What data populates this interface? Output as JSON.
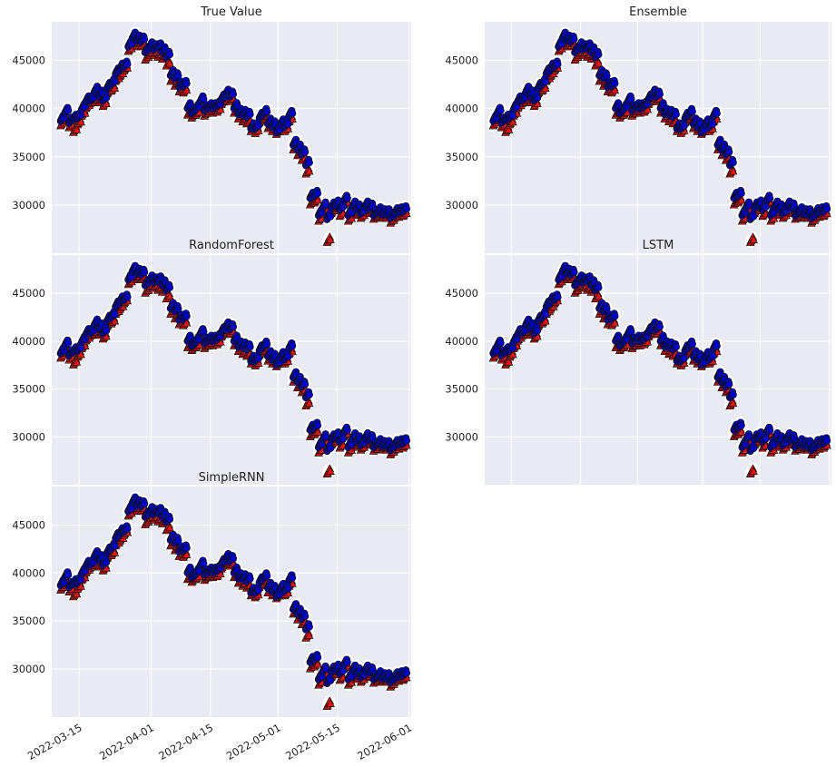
{
  "figure": {
    "panel_background": "#eaeaf2",
    "grid_color": "#ffffff",
    "blue_marker_color": "#0000cc",
    "red_marker_color": "#ee1111",
    "marker_outline_color": "#101010"
  },
  "chart_data": [
    {
      "type": "scatter",
      "title": "True Value",
      "y_ticks": [
        "30000",
        "35000",
        "40000",
        "45000"
      ],
      "x_ticks": [],
      "grid": true,
      "series": [
        {
          "marker": "circle",
          "color": "blue"
        },
        {
          "marker": "triangle",
          "color": "red"
        }
      ]
    },
    {
      "type": "scatter",
      "title": "Ensemble",
      "y_ticks": [
        "30000",
        "35000",
        "40000",
        "45000"
      ],
      "x_ticks": [],
      "grid": true,
      "series": [
        {
          "marker": "circle",
          "color": "blue"
        },
        {
          "marker": "triangle",
          "color": "red"
        }
      ]
    },
    {
      "type": "scatter",
      "title": "RandomForest",
      "y_ticks": [
        "30000",
        "35000",
        "40000",
        "45000"
      ],
      "x_ticks": [],
      "grid": true,
      "series": [
        {
          "marker": "circle",
          "color": "blue"
        },
        {
          "marker": "triangle",
          "color": "red"
        }
      ]
    },
    {
      "type": "scatter",
      "title": "LSTM",
      "y_ticks": [
        "30000",
        "35000",
        "40000",
        "45000"
      ],
      "x_ticks": [],
      "grid": true,
      "series": [
        {
          "marker": "circle",
          "color": "blue"
        },
        {
          "marker": "triangle",
          "color": "red"
        }
      ]
    },
    {
      "type": "scatter",
      "title": "SimpleRNN",
      "y_ticks": [
        "30000",
        "35000",
        "40000",
        "45000"
      ],
      "x_ticks": [
        "2022-03-15",
        "2022-04-01",
        "2022-04-15",
        "2022-05-01",
        "2022-05-15",
        "2022-06-01"
      ],
      "grid": true,
      "series": [
        {
          "marker": "circle",
          "color": "blue"
        },
        {
          "marker": "triangle",
          "color": "red"
        }
      ]
    }
  ],
  "price_series": {
    "x_range": [
      "2022-03-11",
      "2022-05-31"
    ],
    "ylim": [
      25000,
      49000
    ],
    "dates": [
      "2022-03-11",
      "2022-03-12",
      "2022-03-13",
      "2022-03-14",
      "2022-03-15",
      "2022-03-16",
      "2022-03-17",
      "2022-03-18",
      "2022-03-19",
      "2022-03-20",
      "2022-03-21",
      "2022-03-22",
      "2022-03-23",
      "2022-03-24",
      "2022-03-25",
      "2022-03-26",
      "2022-03-27",
      "2022-03-28",
      "2022-03-29",
      "2022-03-30",
      "2022-03-31",
      "2022-04-01",
      "2022-04-02",
      "2022-04-03",
      "2022-04-04",
      "2022-04-05",
      "2022-04-06",
      "2022-04-07",
      "2022-04-08",
      "2022-04-09",
      "2022-04-10",
      "2022-04-11",
      "2022-04-12",
      "2022-04-13",
      "2022-04-14",
      "2022-04-15",
      "2022-04-16",
      "2022-04-17",
      "2022-04-18",
      "2022-04-19",
      "2022-04-20",
      "2022-04-21",
      "2022-04-22",
      "2022-04-23",
      "2022-04-24",
      "2022-04-25",
      "2022-04-26",
      "2022-04-27",
      "2022-04-28",
      "2022-04-29",
      "2022-04-30",
      "2022-05-01",
      "2022-05-02",
      "2022-05-03",
      "2022-05-04",
      "2022-05-05",
      "2022-05-06",
      "2022-05-07",
      "2022-05-08",
      "2022-05-09",
      "2022-05-10",
      "2022-05-11",
      "2022-05-12",
      "2022-05-13",
      "2022-05-14",
      "2022-05-15",
      "2022-05-16",
      "2022-05-17",
      "2022-05-18",
      "2022-05-19",
      "2022-05-20",
      "2022-05-21",
      "2022-05-22",
      "2022-05-23",
      "2022-05-24",
      "2022-05-25",
      "2022-05-26",
      "2022-05-27",
      "2022-05-28",
      "2022-05-29",
      "2022-05-30",
      "2022-05-31"
    ],
    "blue": [
      39000,
      39800,
      38800,
      39100,
      39300,
      40200,
      41000,
      41100,
      42000,
      41600,
      41100,
      42400,
      42800,
      43900,
      44400,
      44600,
      46700,
      47600,
      47300,
      47200,
      46100,
      46600,
      46400,
      46500,
      46100,
      45600,
      43700,
      43400,
      42500,
      42600,
      40300,
      39800,
      40200,
      41000,
      40100,
      40300,
      40300,
      40500,
      41200,
      41700,
      41500,
      40300,
      39700,
      39600,
      39400,
      38200,
      38200,
      39300,
      39700,
      38700,
      38400,
      37800,
      38600,
      38400,
      39500,
      36500,
      36000,
      35500,
      34400,
      31000,
      31200,
      29200,
      30000,
      28800,
      30000,
      30200,
      29800,
      30700,
      29200,
      30100,
      29800,
      29400,
      30100,
      29900,
      29200,
      29500,
      29300,
      29300,
      28900,
      29400,
      29500,
      29600
    ],
    "red": [
      38500,
      39000,
      38300,
      37800,
      38600,
      39500,
      40300,
      40800,
      40900,
      40900,
      40500,
      41800,
      42100,
      43100,
      43600,
      44200,
      46200,
      47100,
      46700,
      46700,
      45300,
      45800,
      45800,
      45600,
      45400,
      44700,
      43100,
      42600,
      42000,
      41900,
      39600,
      39300,
      39600,
      40500,
      39500,
      39800,
      39800,
      39900,
      40700,
      41100,
      41000,
      39800,
      39200,
      38900,
      38700,
      37900,
      37700,
      38800,
      39200,
      38200,
      37900,
      37600,
      38000,
      37900,
      38900,
      36000,
      35400,
      34900,
      33500,
      30300,
      30500,
      28600,
      29500,
      26400,
      29400,
      29700,
      29100,
      30300,
      28600,
      29500,
      29200,
      28900,
      29500,
      29400,
      28800,
      29000,
      28900,
      28900,
      28400,
      28900,
      29000,
      29100
    ]
  }
}
